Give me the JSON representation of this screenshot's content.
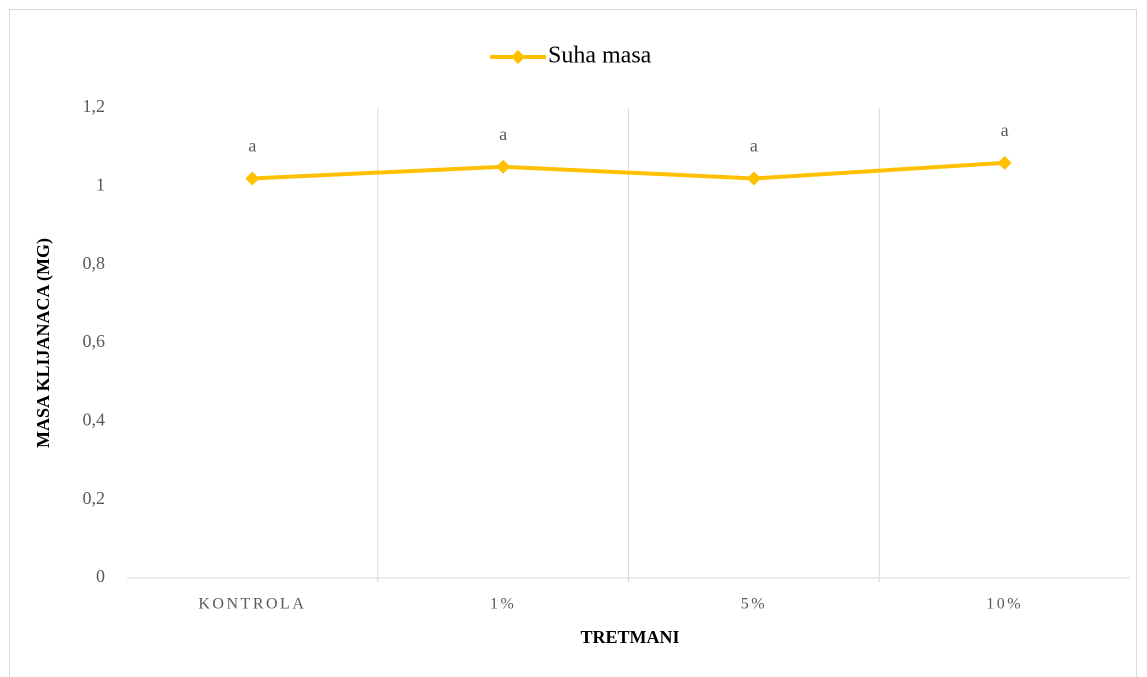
{
  "chart_data": {
    "type": "line",
    "y_label": "MASA KLIJANACA (MG)",
    "x_label": "TRETMANI",
    "categories": [
      "KONTROLA",
      "1%",
      "5%",
      "10%"
    ],
    "series": [
      {
        "name": "Suha masa",
        "color": "#ffc000",
        "values": [
          1.02,
          1.05,
          1.02,
          1.06
        ],
        "point_labels": [
          "a",
          "a",
          "a",
          "a"
        ]
      }
    ],
    "ylim": [
      0,
      1.2
    ],
    "yticks": [
      0,
      {
        "value": 0.2,
        "label": "0,2"
      },
      {
        "value": 0.4,
        "label": "0,4"
      },
      {
        "value": 0.6,
        "label": "0,6"
      },
      {
        "value": 0.8,
        "label": "0,8"
      },
      1,
      {
        "value": 1.2,
        "label": "1,2"
      }
    ],
    "legend": "top",
    "grid": true
  }
}
